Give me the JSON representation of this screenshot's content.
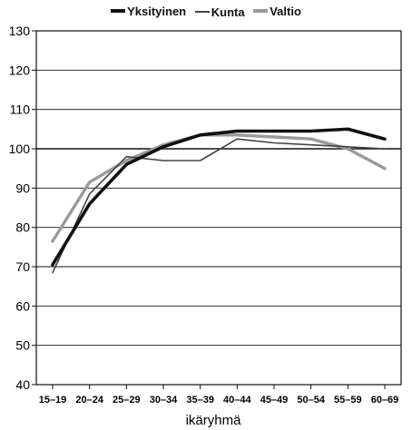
{
  "chart_data": {
    "type": "line",
    "title": "",
    "xlabel": "ikäryhmä",
    "ylabel": "",
    "categories": [
      "15–19",
      "20–24",
      "25–29",
      "30–34",
      "35–39",
      "40–44",
      "45–49",
      "50–54",
      "55–59",
      "60–69"
    ],
    "ylim": [
      40,
      130
    ],
    "yticks": [
      40,
      50,
      60,
      70,
      80,
      90,
      100,
      110,
      120,
      130
    ],
    "grid": true,
    "legend_position": "top-center",
    "series": [
      {
        "name": "Yksityinen",
        "color": "#111111",
        "values": [
          70.5,
          86,
          96,
          100.5,
          103.5,
          104.5,
          104.5,
          104.5,
          105,
          102.5
        ]
      },
      {
        "name": "Kunta",
        "color": "#444444",
        "values": [
          68.5,
          88.5,
          98,
          97,
          97,
          102.5,
          101.5,
          101,
          100.5,
          100
        ]
      },
      {
        "name": "Valtio",
        "color": "#9a9a9a",
        "values": [
          76.5,
          91.5,
          97,
          101,
          103.5,
          103.5,
          103,
          102.5,
          100,
          95
        ]
      }
    ]
  }
}
